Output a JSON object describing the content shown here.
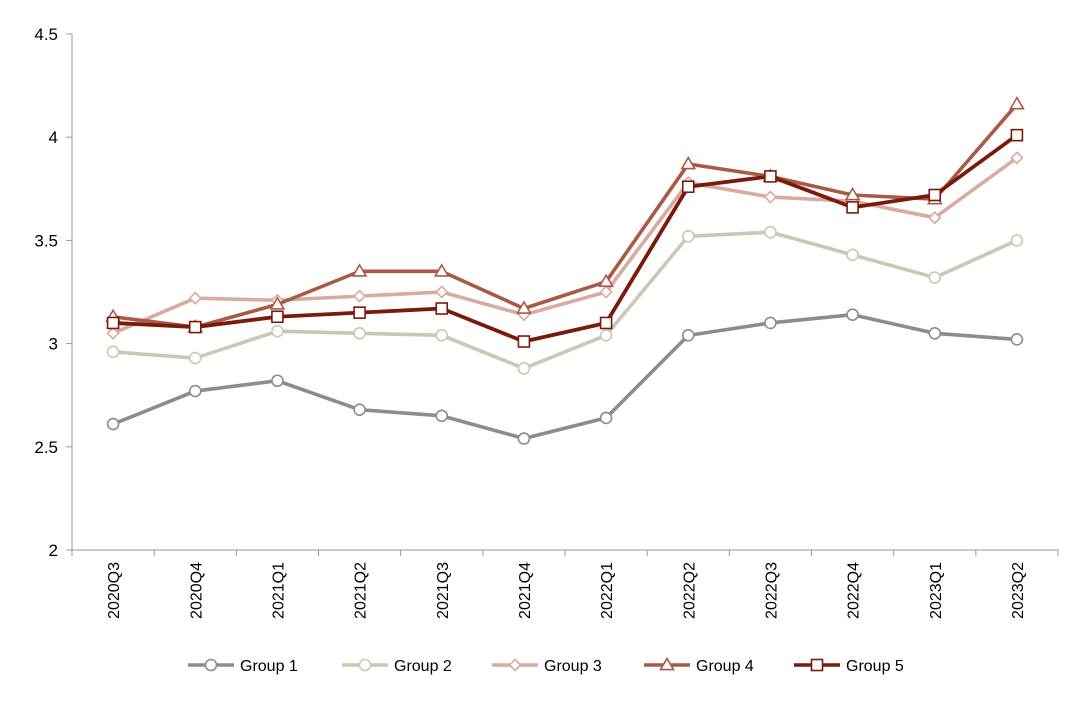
{
  "chart_data": {
    "type": "line",
    "title": "",
    "xlabel": "",
    "ylabel": "",
    "categories": [
      "2020Q3",
      "2020Q4",
      "2021Q1",
      "2021Q2",
      "2021Q3",
      "2021Q4",
      "2022Q1",
      "2022Q2",
      "2022Q3",
      "2022Q4",
      "2023Q1",
      "2023Q2"
    ],
    "ylim": [
      2,
      4.5
    ],
    "yticks": [
      "2",
      "2.5",
      "3",
      "3.5",
      "4",
      "4.5"
    ],
    "grid": false,
    "legend_position": "bottom",
    "series": [
      {
        "name": "Group 1",
        "color": "#8c8c8c",
        "marker": "circle",
        "values": [
          2.61,
          2.77,
          2.82,
          2.68,
          2.65,
          2.54,
          2.64,
          3.04,
          3.1,
          3.14,
          3.05,
          3.02
        ]
      },
      {
        "name": "Group 2",
        "color": "#c8c8b4",
        "marker": "circle",
        "values": [
          2.96,
          2.93,
          3.06,
          3.05,
          3.04,
          2.88,
          3.04,
          3.52,
          3.54,
          3.43,
          3.32,
          3.5
        ]
      },
      {
        "name": "Group 3",
        "color": "#d9aaa0",
        "marker": "diamond",
        "values": [
          3.05,
          3.22,
          3.21,
          3.23,
          3.25,
          3.14,
          3.25,
          3.78,
          3.71,
          3.69,
          3.61,
          3.9
        ]
      },
      {
        "name": "Group 4",
        "color": "#a85a44",
        "marker": "triangle",
        "values": [
          3.13,
          3.08,
          3.19,
          3.35,
          3.35,
          3.17,
          3.3,
          3.87,
          3.81,
          3.72,
          3.7,
          4.16
        ]
      },
      {
        "name": "Group 5",
        "color": "#7a1a0a",
        "marker": "square",
        "values": [
          3.1,
          3.08,
          3.13,
          3.15,
          3.17,
          3.01,
          3.1,
          3.76,
          3.81,
          3.66,
          3.72,
          4.01
        ]
      }
    ]
  }
}
